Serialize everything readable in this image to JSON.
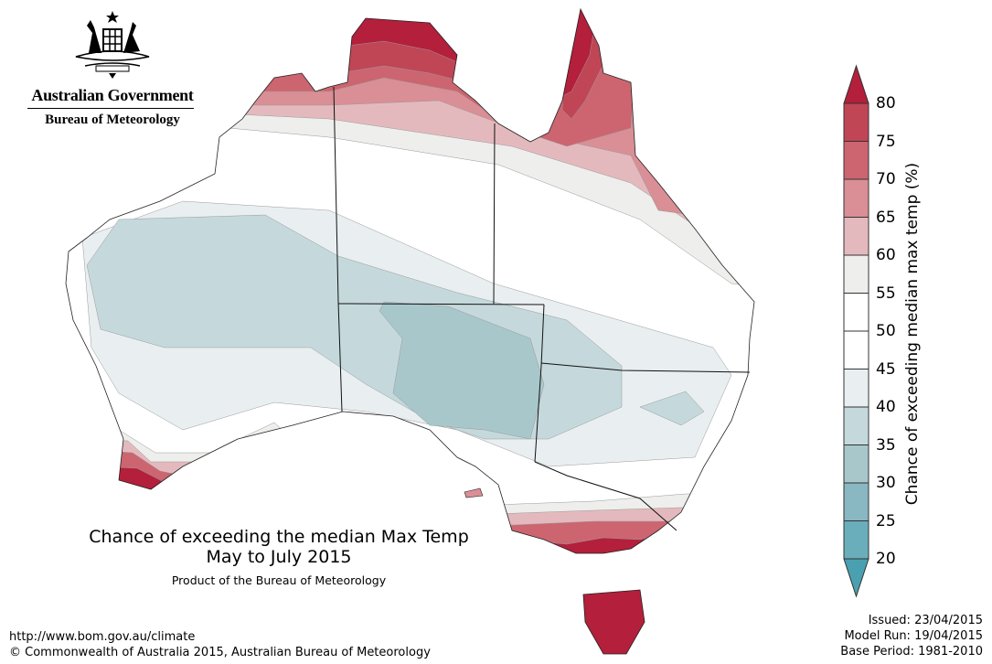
{
  "header": {
    "government": "Australian Government",
    "agency": "Bureau of Meteorology"
  },
  "map": {
    "title_line1": "Chance of exceeding the median Max Temp",
    "title_line2": "May to July 2015",
    "product": "Product of the Bureau of Meteorology"
  },
  "legend": {
    "title": "Chance of exceeding median max temp (%)",
    "ticks": [
      "80",
      "75",
      "70",
      "65",
      "60",
      "55",
      "50",
      "45",
      "40",
      "35",
      "30",
      "25",
      "20"
    ],
    "colors_top_to_bottom": [
      "#c04655",
      "#cc6570",
      "#d98f95",
      "#e4b9bd",
      "#eeeeec",
      "#ffffff",
      "#ffffff",
      "#e9eff1",
      "#c5d9dc",
      "#a8c7cb",
      "#89b7c2",
      "#6aaebb"
    ],
    "over_color": "#b41f3c",
    "under_color": "#4aa0b0"
  },
  "footer": {
    "url": "http://www.bom.gov.au/climate",
    "copyright": "© Commonwealth of Australia 2015, Australian Bureau of Meteorology",
    "issued": "Issued: 23/04/2015",
    "model_run": "Model Run: 19/04/2015",
    "base_period": "Base Period: 1981-2010"
  }
}
